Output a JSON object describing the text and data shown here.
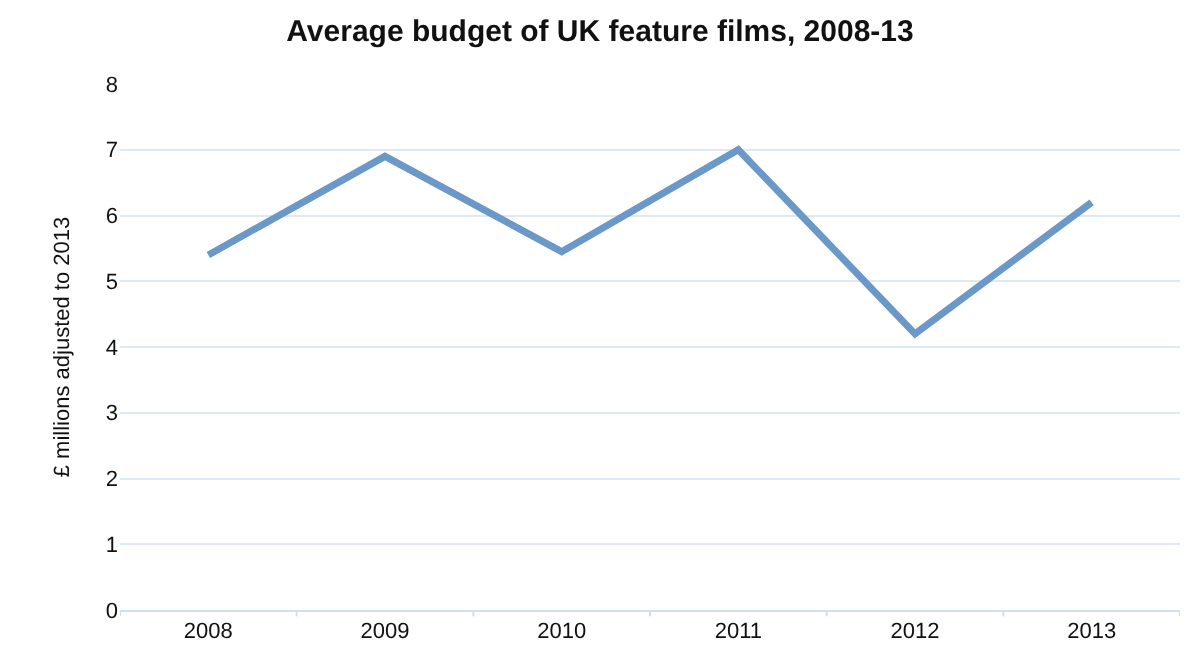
{
  "chart_data": {
    "type": "line",
    "title": "Average budget of UK feature films, 2008-13",
    "ylabel": "£ millions adjusted to 2013",
    "categories": [
      "2008",
      "2009",
      "2010",
      "2011",
      "2012",
      "2013"
    ],
    "series": [
      {
        "color": "#6a98c8",
        "values": [
          5.4,
          6.9,
          5.45,
          7.0,
          4.2,
          6.2
        ]
      }
    ],
    "ylim": [
      0,
      8
    ],
    "yticks": [
      0,
      1,
      2,
      3,
      4,
      5,
      6,
      7,
      8
    ],
    "grid": "y",
    "legend": false,
    "marker": "none",
    "line_style": "solid"
  }
}
